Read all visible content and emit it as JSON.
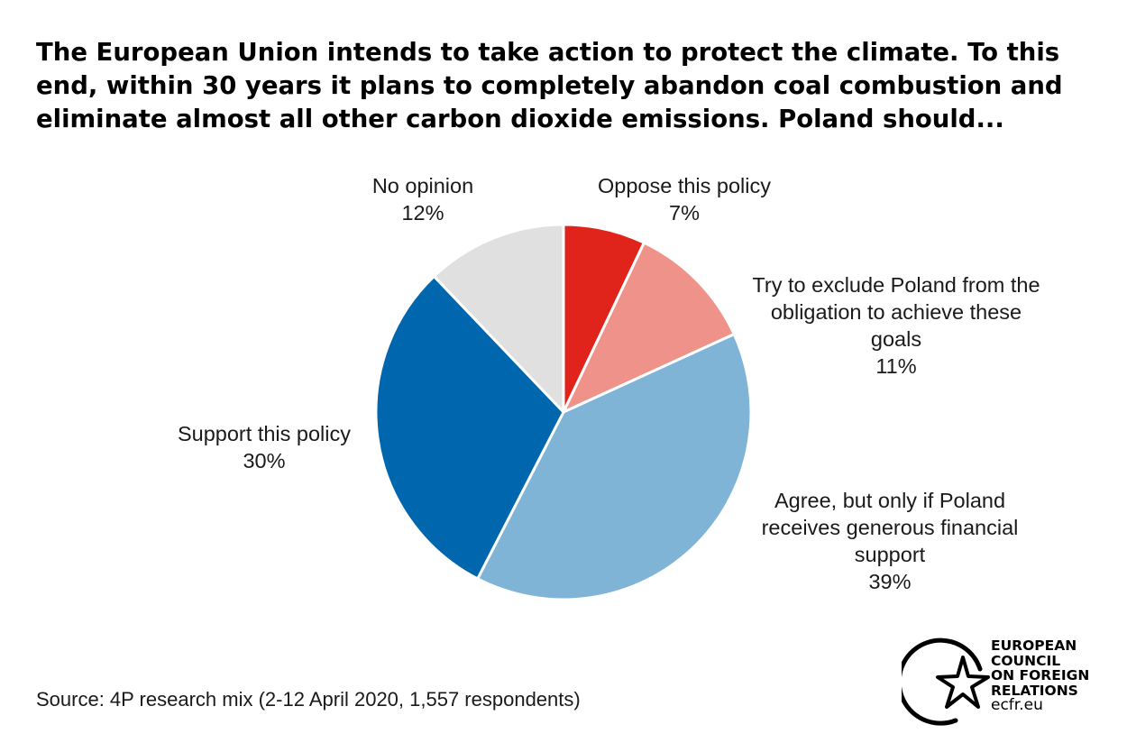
{
  "title_lines": [
    "The European Union intends to take action to protect the climate. To this",
    "end, within 30 years it plans to completely abandon coal combustion and",
    "eliminate almost all other carbon dioxide emissions. Poland should..."
  ],
  "chart_data": {
    "type": "pie",
    "slices": [
      {
        "label_lines": [
          "Oppose this policy"
        ],
        "value": 7,
        "value_label": "7%",
        "color": "#e0241c"
      },
      {
        "label_lines": [
          "Try to exclude Poland from the",
          "obligation to achieve these",
          "goals"
        ],
        "value": 11,
        "value_label": "11%",
        "color": "#ee928a"
      },
      {
        "label_lines": [
          "Agree, but only if Poland",
          "receives generous financial",
          "support"
        ],
        "value": 39,
        "value_label": "39%",
        "color": "#80b4d6"
      },
      {
        "label_lines": [
          "Support this policy"
        ],
        "value": 30,
        "value_label": "30%",
        "color": "#0066ad"
      },
      {
        "label_lines": [
          "No opinion"
        ],
        "value": 12,
        "value_label": "12%",
        "color": "#e0e0e0"
      }
    ],
    "start": "12 o'clock",
    "direction": "clockwise"
  },
  "source": "Source: 4P research mix (2-12 April 2020, 1,557 respondents)",
  "logo": {
    "lines": [
      "EUROPEAN",
      "COUNCIL",
      "ON FOREIGN",
      "RELATIONS"
    ],
    "url": "ecfr.eu"
  }
}
